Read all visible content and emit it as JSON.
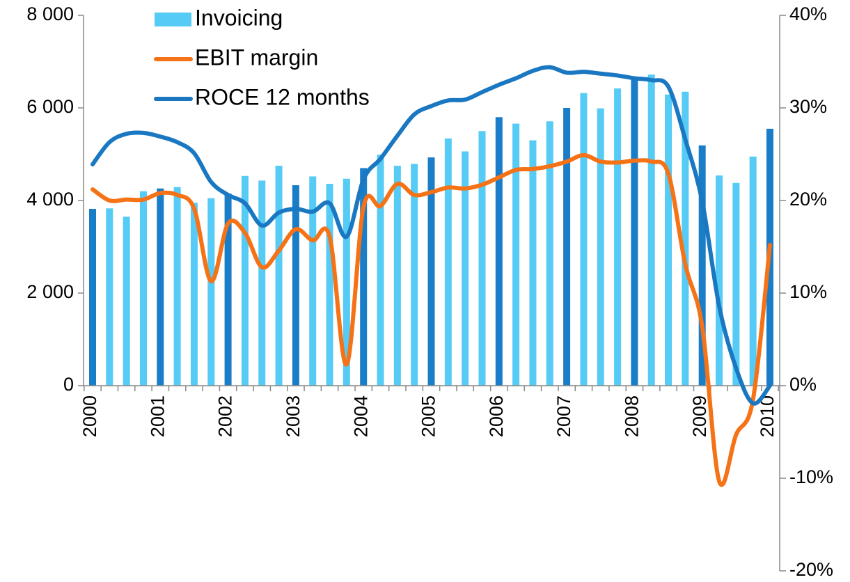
{
  "chart_data": {
    "type": "bar",
    "categories": [
      "2000",
      null,
      null,
      null,
      "2001",
      null,
      null,
      null,
      "2002",
      null,
      null,
      null,
      "2003",
      null,
      null,
      null,
      "2004",
      null,
      null,
      null,
      "2005",
      null,
      null,
      null,
      "2006",
      null,
      null,
      null,
      "2007",
      null,
      null,
      null,
      "2008",
      null,
      null,
      null,
      "2009",
      null,
      null,
      null,
      "2010"
    ],
    "series": [
      {
        "name": "Invoicing",
        "type": "bar",
        "color": "#55CBF5",
        "colors": [
          "#1A7DC8",
          "#55CBF5",
          "#55CBF5",
          "#55CBF5",
          "#1A7DC8",
          "#55CBF5",
          "#55CBF5",
          "#55CBF5",
          "#1A7DC8",
          "#55CBF5",
          "#55CBF5",
          "#55CBF5",
          "#1A7DC8",
          "#55CBF5",
          "#55CBF5",
          "#55CBF5",
          "#1A7DC8",
          "#55CBF5",
          "#55CBF5",
          "#55CBF5",
          "#1A7DC8",
          "#55CBF5",
          "#55CBF5",
          "#55CBF5",
          "#1A7DC8",
          "#55CBF5",
          "#55CBF5",
          "#55CBF5",
          "#1A7DC8",
          "#55CBF5",
          "#55CBF5",
          "#55CBF5",
          "#1A7DC8",
          "#55CBF5",
          "#55CBF5",
          "#55CBF5",
          "#1A7DC8",
          "#55CBF5",
          "#55CBF5",
          "#55CBF5",
          "#1A7DC8"
        ],
        "values": [
          3820,
          3830,
          3650,
          4200,
          4260,
          4290,
          3950,
          4050,
          4150,
          4530,
          4430,
          4750,
          4330,
          4520,
          4360,
          4470,
          4700,
          4990,
          4750,
          4790,
          4930,
          5340,
          5060,
          5500,
          5800,
          5660,
          5300,
          5710,
          6000,
          6320,
          5990,
          6420,
          6650,
          6720,
          6290,
          6350,
          5190,
          4540,
          4380,
          4950,
          5550
        ]
      },
      {
        "name": "EBIT margin",
        "type": "line",
        "axis": "y2",
        "color": "#F57216",
        "values": [
          21.2,
          20.0,
          20.1,
          20.1,
          20.8,
          20.6,
          19.1,
          11.3,
          17.5,
          16.5,
          12.8,
          14.6,
          16.9,
          15.7,
          16.1,
          2.3,
          19.3,
          19.4,
          21.8,
          20.6,
          20.9,
          21.4,
          21.3,
          21.7,
          22.5,
          23.3,
          23.4,
          23.7,
          24.2,
          24.9,
          24.2,
          24.1,
          24.3,
          24.2,
          22.9,
          13.1,
          6.4,
          -10.3,
          -5.3,
          -1.5,
          15.2
        ]
      },
      {
        "name": "ROCE 12 months",
        "type": "line",
        "axis": "y2",
        "color": "#1A78C2",
        "values": [
          23.9,
          26.3,
          27.2,
          27.3,
          26.9,
          26.3,
          25.1,
          22.0,
          20.6,
          19.7,
          17.3,
          18.7,
          19.1,
          18.8,
          19.7,
          16.1,
          22.3,
          24.5,
          27.0,
          29.3,
          30.2,
          30.8,
          30.9,
          31.7,
          32.5,
          33.2,
          34.0,
          34.4,
          33.8,
          33.9,
          33.7,
          33.5,
          33.2,
          33.0,
          32.3,
          26.6,
          19.9,
          8.6,
          1.9,
          -1.9,
          0.0
        ]
      }
    ],
    "ylim": [
      -4000,
      8000
    ],
    "yticks": [
      {
        "value": 0,
        "label": "0"
      },
      {
        "value": 2000,
        "label": "2 000"
      },
      {
        "value": 4000,
        "label": "4 000"
      },
      {
        "value": 6000,
        "label": "6 000"
      },
      {
        "value": 8000,
        "label": "8 000"
      }
    ],
    "y2lim": [
      -20,
      40
    ],
    "y2ticks": [
      {
        "value": -20,
        "label": "-20%"
      },
      {
        "value": -10,
        "label": "-10%"
      },
      {
        "value": 0,
        "label": "0%"
      },
      {
        "value": 10,
        "label": "10%"
      },
      {
        "value": 20,
        "label": "20%"
      },
      {
        "value": 30,
        "label": "30%"
      },
      {
        "value": 40,
        "label": "40%"
      }
    ],
    "grid": false,
    "legend": "top-left"
  }
}
